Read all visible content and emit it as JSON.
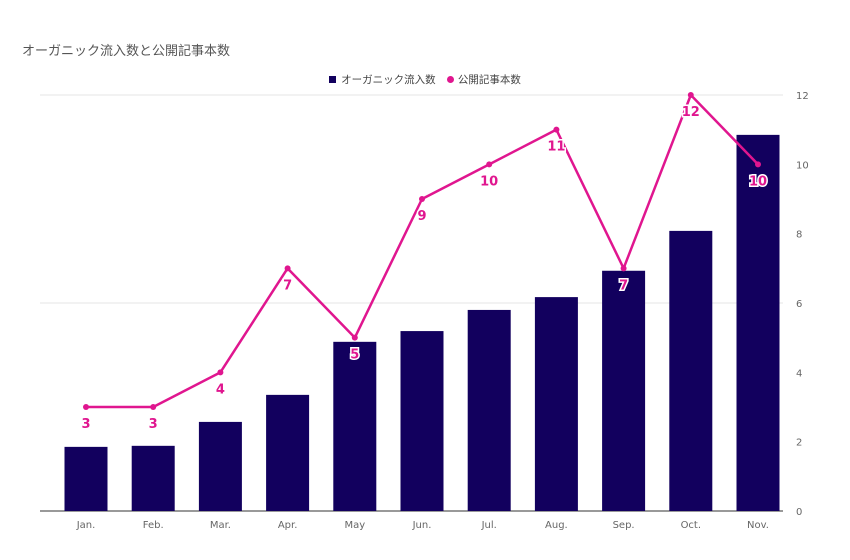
{
  "chart_data": {
    "type": "bar",
    "title": "オーガニック流入数と公開記事本数",
    "categories": [
      "Jan.",
      "Feb.",
      "Mar.",
      "Apr.",
      "May",
      "Jun.",
      "Jul.",
      "Aug.",
      "Sep.",
      "Oct.",
      "Nov."
    ],
    "series": [
      {
        "name": "オーガニック流入数",
        "type": "bar",
        "color": "#12005e",
        "values": [
          1.85,
          1.88,
          2.57,
          3.35,
          4.88,
          5.19,
          5.8,
          6.17,
          6.93,
          8.08,
          10.85
        ]
      },
      {
        "name": "公開記事本数",
        "type": "line",
        "color": "#e0168f",
        "values": [
          3,
          3,
          4,
          7,
          5,
          9,
          10,
          11,
          7,
          12,
          10
        ],
        "data_labels": [
          "3",
          "3",
          "4",
          "7",
          "5",
          "9",
          "10",
          "11",
          "7",
          "12",
          "10"
        ]
      }
    ],
    "y_axis": {
      "position": "right",
      "range": [
        0,
        12
      ],
      "ticks": [
        "0",
        "2",
        "4",
        "6",
        "8",
        "10",
        "12"
      ]
    },
    "grid": true,
    "legend_position": "top-center"
  }
}
